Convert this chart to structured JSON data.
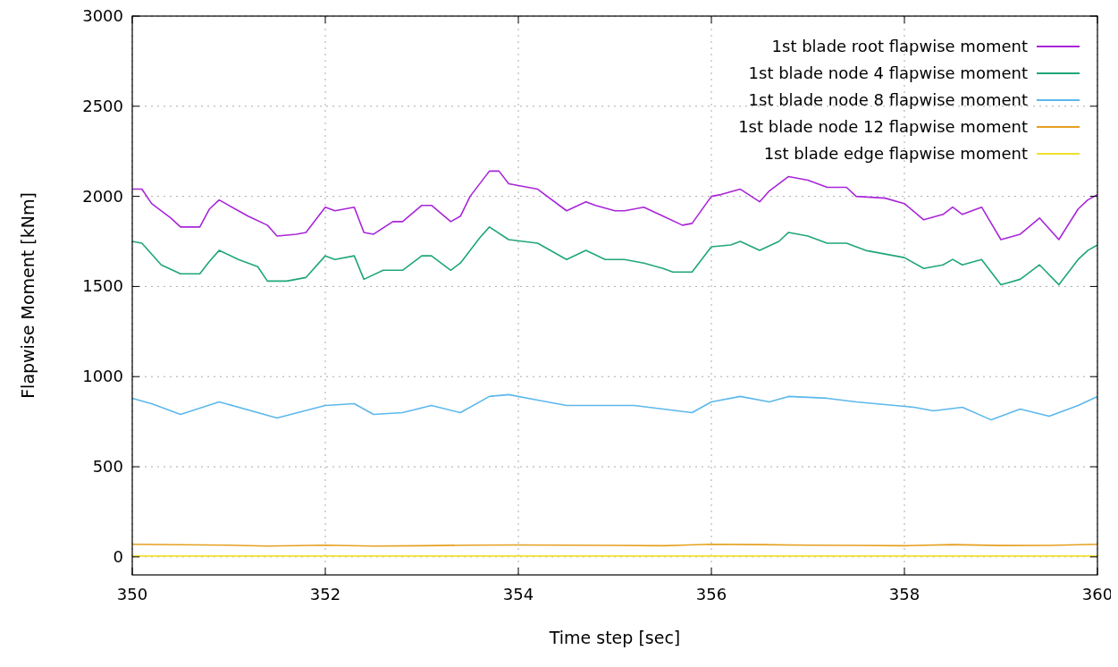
{
  "chart_data": {
    "type": "line",
    "xlabel": "Time step [sec]",
    "ylabel": "Flapwise Moment [kNm]",
    "xlim": [
      350,
      360
    ],
    "xticks": [
      350,
      352,
      354,
      356,
      358,
      360
    ],
    "ylim": [
      -100,
      3000
    ],
    "yticks": [
      0,
      500,
      1000,
      1500,
      2000,
      2500,
      3000
    ],
    "grid": true,
    "legend": "top right",
    "marker": "none",
    "line_style": "solid",
    "series": [
      {
        "name": "1st blade root flapwise moment",
        "color": "#a826d8",
        "x": [
          350,
          350.1,
          350.2,
          350.4,
          350.5,
          350.7,
          350.8,
          350.9,
          351.1,
          351.2,
          351.4,
          351.5,
          351.7,
          351.8,
          352,
          352.1,
          352.3,
          352.4,
          352.5,
          352.7,
          352.8,
          353,
          353.1,
          353.3,
          353.4,
          353.5,
          353.7,
          353.8,
          353.9,
          354.2,
          354.5,
          354.7,
          354.8,
          355,
          355.1,
          355.3,
          355.5,
          355.7,
          355.8,
          356,
          356.1,
          356.3,
          356.5,
          356.6,
          356.8,
          357,
          357.2,
          357.4,
          357.5,
          357.8,
          358,
          358.2,
          358.4,
          358.5,
          358.6,
          358.8,
          359,
          359.2,
          359.4,
          359.6,
          359.8,
          359.9,
          360
        ],
        "values": [
          2040,
          2040,
          1960,
          1880,
          1830,
          1830,
          1930,
          1980,
          1920,
          1890,
          1840,
          1780,
          1790,
          1800,
          1940,
          1920,
          1940,
          1800,
          1790,
          1860,
          1860,
          1950,
          1950,
          1860,
          1890,
          2000,
          2140,
          2140,
          2070,
          2040,
          1920,
          1970,
          1950,
          1920,
          1920,
          1940,
          1890,
          1840,
          1850,
          2000,
          2010,
          2040,
          1970,
          2030,
          2110,
          2090,
          2050,
          2050,
          2000,
          1990,
          1960,
          1870,
          1900,
          1940,
          1900,
          1940,
          1760,
          1790,
          1880,
          1760,
          1930,
          1980,
          2010
        ]
      },
      {
        "name": "1st blade node 4 flapwise moment",
        "color": "#1fa67a",
        "x": [
          350,
          350.1,
          350.3,
          350.5,
          350.7,
          350.8,
          350.9,
          351.1,
          351.3,
          351.4,
          351.6,
          351.8,
          352,
          352.1,
          352.3,
          352.4,
          352.6,
          352.8,
          353,
          353.1,
          353.3,
          353.4,
          353.6,
          353.7,
          353.9,
          354.2,
          354.5,
          354.7,
          354.9,
          355.1,
          355.3,
          355.5,
          355.6,
          355.8,
          356,
          356.2,
          356.3,
          356.5,
          356.7,
          356.8,
          357,
          357.2,
          357.4,
          357.6,
          357.8,
          358,
          358.2,
          358.4,
          358.5,
          358.6,
          358.8,
          359,
          359.2,
          359.4,
          359.6,
          359.8,
          359.9,
          360
        ],
        "values": [
          1750,
          1740,
          1620,
          1570,
          1570,
          1640,
          1700,
          1650,
          1610,
          1530,
          1530,
          1550,
          1670,
          1650,
          1670,
          1540,
          1590,
          1590,
          1670,
          1670,
          1590,
          1630,
          1770,
          1830,
          1760,
          1740,
          1650,
          1700,
          1650,
          1650,
          1630,
          1600,
          1580,
          1580,
          1720,
          1730,
          1750,
          1700,
          1750,
          1800,
          1780,
          1740,
          1740,
          1700,
          1680,
          1660,
          1600,
          1620,
          1650,
          1620,
          1650,
          1510,
          1540,
          1620,
          1510,
          1650,
          1700,
          1730
        ]
      },
      {
        "name": "1st blade node 8 flapwise moment",
        "color": "#5cb8ec",
        "x": [
          350,
          350.2,
          350.5,
          350.9,
          351.5,
          352,
          352.3,
          352.5,
          352.8,
          353.1,
          353.4,
          353.7,
          353.9,
          354.2,
          354.5,
          354.9,
          355.2,
          355.5,
          355.8,
          356,
          356.3,
          356.6,
          356.8,
          357.2,
          357.5,
          357.9,
          358.1,
          358.3,
          358.6,
          358.9,
          359.2,
          359.5,
          359.8,
          360
        ],
        "values": [
          880,
          850,
          790,
          860,
          770,
          840,
          850,
          790,
          800,
          840,
          800,
          890,
          900,
          870,
          840,
          840,
          840,
          820,
          800,
          860,
          890,
          860,
          890,
          880,
          860,
          840,
          830,
          810,
          830,
          760,
          820,
          780,
          840,
          890
        ]
      },
      {
        "name": "1st blade node 12 flapwise moment",
        "color": "#e6a020",
        "x": [
          350,
          351,
          351.4,
          352,
          352.5,
          353,
          353.5,
          354,
          354.5,
          355,
          355.5,
          356,
          356.5,
          357,
          357.5,
          358,
          358.5,
          359,
          359.5,
          360
        ],
        "values": [
          70,
          65,
          60,
          65,
          60,
          62,
          65,
          66,
          65,
          64,
          62,
          70,
          68,
          65,
          64,
          62,
          68,
          63,
          64,
          70
        ]
      },
      {
        "name": "1st blade edge flapwise moment",
        "color": "#f0e030",
        "x": [
          350,
          360
        ],
        "values": [
          5,
          5
        ]
      }
    ]
  }
}
